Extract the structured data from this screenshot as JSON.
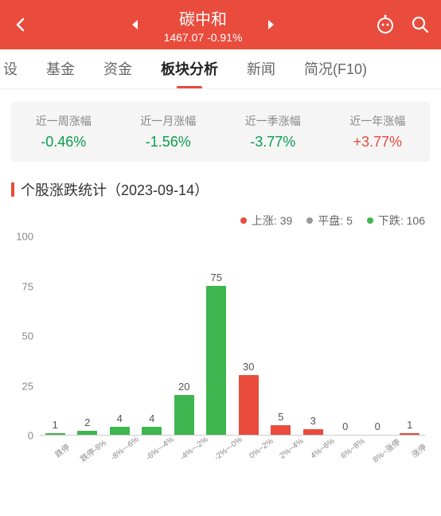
{
  "header": {
    "title": "碳中和",
    "index_value": "1467.07",
    "index_change": "-0.91%"
  },
  "tabs": {
    "partial_left": "设",
    "items": [
      "基金",
      "资金",
      "板块分析",
      "新闻",
      "简况(F10)"
    ],
    "active_index": 2
  },
  "period_stats": [
    {
      "label": "近一周涨幅",
      "value": "-0.46%",
      "direction": "down"
    },
    {
      "label": "近一月涨幅",
      "value": "-1.56%",
      "direction": "down"
    },
    {
      "label": "近一季涨幅",
      "value": "-3.77%",
      "direction": "down"
    },
    {
      "label": "近一年涨幅",
      "value": "+3.77%",
      "direction": "up"
    }
  ],
  "section": {
    "title": "个股涨跌统计（2023-09-14）"
  },
  "legend": {
    "up_label": "上涨",
    "up_count": "39",
    "flat_label": "平盘",
    "flat_count": "5",
    "down_label": "下跌",
    "down_count": "106",
    "up_color": "#e94b3c",
    "flat_color": "#999999",
    "down_color": "#3fb64f"
  },
  "chart": {
    "type": "bar",
    "ylim": [
      0,
      100
    ],
    "ytick_step": 25,
    "yticks": [
      0,
      25,
      50,
      75,
      100
    ],
    "background_color": "#ffffff",
    "axis_color": "#cccccc",
    "value_label_color": "#555555",
    "categories": [
      "跌停",
      "跌停-8%",
      "-8%~-6%",
      "-6%~-4%",
      "-4%~-2%",
      "-2%~-0%",
      "0%~2%",
      "2%~4%",
      "4%~6%",
      "6%~8%",
      "8%~涨停",
      "涨停"
    ],
    "values": [
      1,
      2,
      4,
      4,
      20,
      75,
      30,
      5,
      3,
      0,
      0,
      1
    ],
    "bar_colors": [
      "#3fb64f",
      "#3fb64f",
      "#3fb64f",
      "#3fb64f",
      "#3fb64f",
      "#3fb64f",
      "#e94b3c",
      "#e94b3c",
      "#e94b3c",
      "#e94b3c",
      "#e94b3c",
      "#e94b3c"
    ],
    "bar_width_pct": 65,
    "label_fontsize": 10
  }
}
